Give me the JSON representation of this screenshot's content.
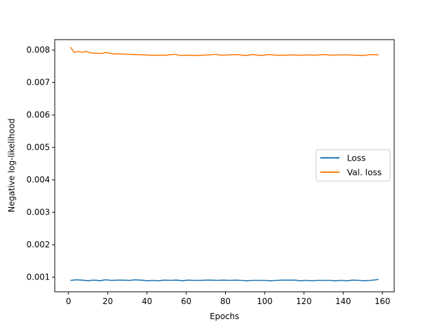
{
  "chart_data": {
    "type": "line",
    "title": "",
    "xlabel": "Epochs",
    "ylabel": "Negative log-likelihood",
    "xlim": [
      -7,
      166
    ],
    "ylim": [
      0.00055,
      0.00832
    ],
    "xticks": [
      0,
      20,
      40,
      60,
      80,
      100,
      120,
      140,
      160
    ],
    "xtick_labels": [
      "0",
      "20",
      "40",
      "60",
      "80",
      "100",
      "120",
      "140",
      "160"
    ],
    "yticks": [
      0.001,
      0.002,
      0.003,
      0.004,
      0.005,
      0.006,
      0.007,
      0.008
    ],
    "ytick_labels": [
      "0.001",
      "0.002",
      "0.003",
      "0.004",
      "0.005",
      "0.006",
      "0.007",
      "0.008"
    ],
    "grid": false,
    "legend_position": "center-right",
    "series": [
      {
        "name": "Loss",
        "color": "#1f77b4",
        "x": [
          1,
          4,
          7,
          10,
          13,
          16,
          19,
          22,
          25,
          28,
          31,
          34,
          37,
          40,
          43,
          46,
          49,
          52,
          55,
          58,
          61,
          64,
          67,
          70,
          73,
          76,
          79,
          82,
          85,
          88,
          91,
          94,
          97,
          100,
          103,
          106,
          109,
          112,
          115,
          118,
          121,
          124,
          127,
          130,
          133,
          136,
          139,
          142,
          145,
          148,
          151,
          154,
          158
        ],
        "y": [
          0.0009,
          0.00092,
          0.00091,
          0.00089,
          0.00091,
          0.00089,
          0.00092,
          0.0009,
          0.00091,
          0.00091,
          0.0009,
          0.00092,
          0.00091,
          0.00089,
          0.0009,
          0.00089,
          0.00091,
          0.0009,
          0.00091,
          0.00089,
          0.00091,
          0.0009,
          0.0009,
          0.00091,
          0.00091,
          0.0009,
          0.00091,
          0.0009,
          0.00091,
          0.0009,
          0.00089,
          0.0009,
          0.0009,
          0.0009,
          0.00089,
          0.0009,
          0.00091,
          0.00091,
          0.00091,
          0.00089,
          0.0009,
          0.00089,
          0.0009,
          0.0009,
          0.0009,
          0.00089,
          0.0009,
          0.00089,
          0.00091,
          0.0009,
          0.00089,
          0.0009,
          0.00093
        ]
      },
      {
        "name": "Val. loss",
        "color": "#ff7f0e",
        "x": [
          1,
          3,
          5,
          7,
          9,
          11,
          13,
          15,
          17,
          19,
          21,
          23,
          26,
          30,
          34,
          38,
          42,
          46,
          50,
          54,
          57,
          60,
          64,
          68,
          72,
          75,
          78,
          82,
          86,
          90,
          94,
          98,
          102,
          106,
          110,
          114,
          118,
          122,
          126,
          130,
          134,
          138,
          142,
          146,
          150,
          154,
          158
        ],
        "y": [
          0.00809,
          0.00792,
          0.00796,
          0.00793,
          0.00796,
          0.00792,
          0.0079,
          0.0079,
          0.00789,
          0.00793,
          0.0079,
          0.00788,
          0.00788,
          0.00787,
          0.00786,
          0.00785,
          0.00784,
          0.00784,
          0.00784,
          0.00787,
          0.00783,
          0.00784,
          0.00783,
          0.00784,
          0.00785,
          0.00787,
          0.00784,
          0.00785,
          0.00786,
          0.00783,
          0.00786,
          0.00783,
          0.00786,
          0.00784,
          0.00784,
          0.00785,
          0.00784,
          0.00785,
          0.00784,
          0.00786,
          0.00784,
          0.00785,
          0.00785,
          0.00784,
          0.00783,
          0.00786,
          0.00785
        ]
      }
    ]
  }
}
